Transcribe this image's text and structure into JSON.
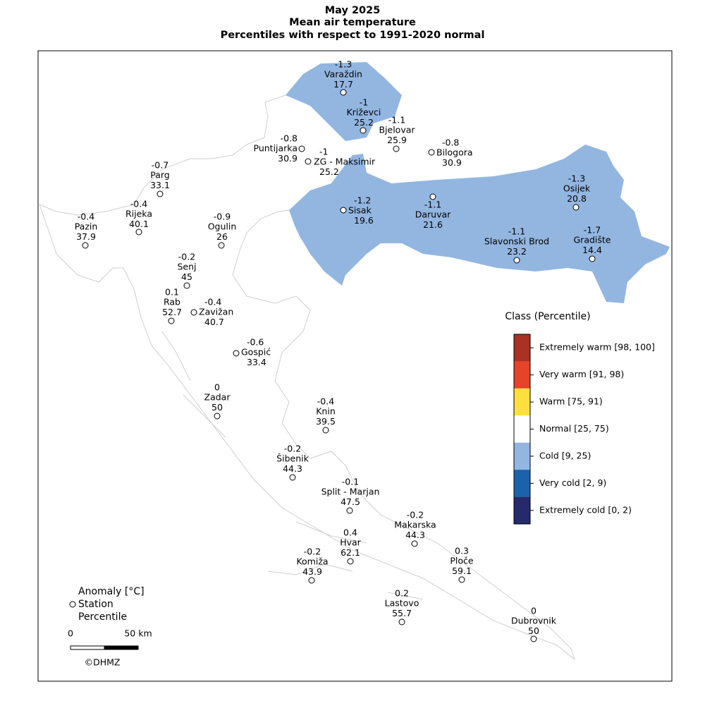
{
  "title": {
    "line1": "May 2025",
    "line2": "Mean air temperature",
    "line3": "Percentiles with respect to 1991-2020 normal"
  },
  "stations": [
    {
      "name": "Varaždin",
      "anomaly": -1.3,
      "percentile": 17.7
    },
    {
      "name": "Križevci",
      "anomaly": -1,
      "percentile": 25.2
    },
    {
      "name": "Bjelovar",
      "anomaly": -1.1,
      "percentile": 25.9
    },
    {
      "name": "Bilogora",
      "anomaly": -0.8,
      "percentile": 30.9
    },
    {
      "name": "Puntijarka",
      "anomaly": -0.8,
      "percentile": 30.9
    },
    {
      "name": "ZG - Maksimir",
      "anomaly": -1,
      "percentile": 25.2
    },
    {
      "name": "Parg",
      "anomaly": -0.7,
      "percentile": 33.1
    },
    {
      "name": "Rijeka",
      "anomaly": -0.4,
      "percentile": 40.1
    },
    {
      "name": "Pazin",
      "anomaly": -0.4,
      "percentile": 37.9
    },
    {
      "name": "Ogulin",
      "anomaly": -0.9,
      "percentile": 26
    },
    {
      "name": "Senj",
      "anomaly": -0.2,
      "percentile": 45
    },
    {
      "name": "Rab",
      "anomaly": 0.1,
      "percentile": 52.7
    },
    {
      "name": "Zavižan",
      "anomaly": -0.4,
      "percentile": 40.7
    },
    {
      "name": "Gospić",
      "anomaly": -0.6,
      "percentile": 33.4
    },
    {
      "name": "Zadar",
      "anomaly": 0,
      "percentile": 50
    },
    {
      "name": "Knin",
      "anomaly": -0.4,
      "percentile": 39.5
    },
    {
      "name": "Šibenik",
      "anomaly": -0.2,
      "percentile": 44.3
    },
    {
      "name": "Split - Marjan",
      "anomaly": -0.1,
      "percentile": 47.5
    },
    {
      "name": "Makarska",
      "anomaly": -0.2,
      "percentile": 44.3
    },
    {
      "name": "Hvar",
      "anomaly": 0.4,
      "percentile": 62.1
    },
    {
      "name": "Komiža",
      "anomaly": -0.2,
      "percentile": 43.9
    },
    {
      "name": "Ploče",
      "anomaly": 0.3,
      "percentile": 59.1
    },
    {
      "name": "Lastovo",
      "anomaly": 0.2,
      "percentile": 55.7
    },
    {
      "name": "Dubrovnik",
      "anomaly": 0,
      "percentile": 50
    },
    {
      "name": "Sisak",
      "anomaly": -1.2,
      "percentile": 19.6
    },
    {
      "name": "Daruvar",
      "anomaly": -1.1,
      "percentile": 21.6
    },
    {
      "name": "Osijek",
      "anomaly": -1.3,
      "percentile": 20.8
    },
    {
      "name": "Slavonski Brod",
      "anomaly": -1.1,
      "percentile": 23.2
    },
    {
      "name": "Gradište",
      "anomaly": -1.7,
      "percentile": 14.4
    }
  ],
  "class_legend": {
    "title": "Class (Percentile)",
    "classes": [
      {
        "label": "Extremely warm [98, 100]",
        "color": "#a83224"
      },
      {
        "label": "Very warm [91, 98)",
        "color": "#e5432a"
      },
      {
        "label": "Warm [75, 91)",
        "color": "#fde03f"
      },
      {
        "label": "Normal [25, 75)",
        "color": "#ffffff"
      },
      {
        "label": "Cold [9, 25)",
        "color": "#93b6e1"
      },
      {
        "label": "Very cold [2, 9)",
        "color": "#1b62ac"
      },
      {
        "label": "Extremely cold [0, 2)",
        "color": "#252a6b"
      }
    ]
  },
  "station_legend": {
    "anomaly": "Anomaly [°C]",
    "station": "Station",
    "percentile": "Percentile"
  },
  "scale_bar": {
    "start": "0",
    "end": "50 km"
  },
  "copyright": "©DHMZ"
}
